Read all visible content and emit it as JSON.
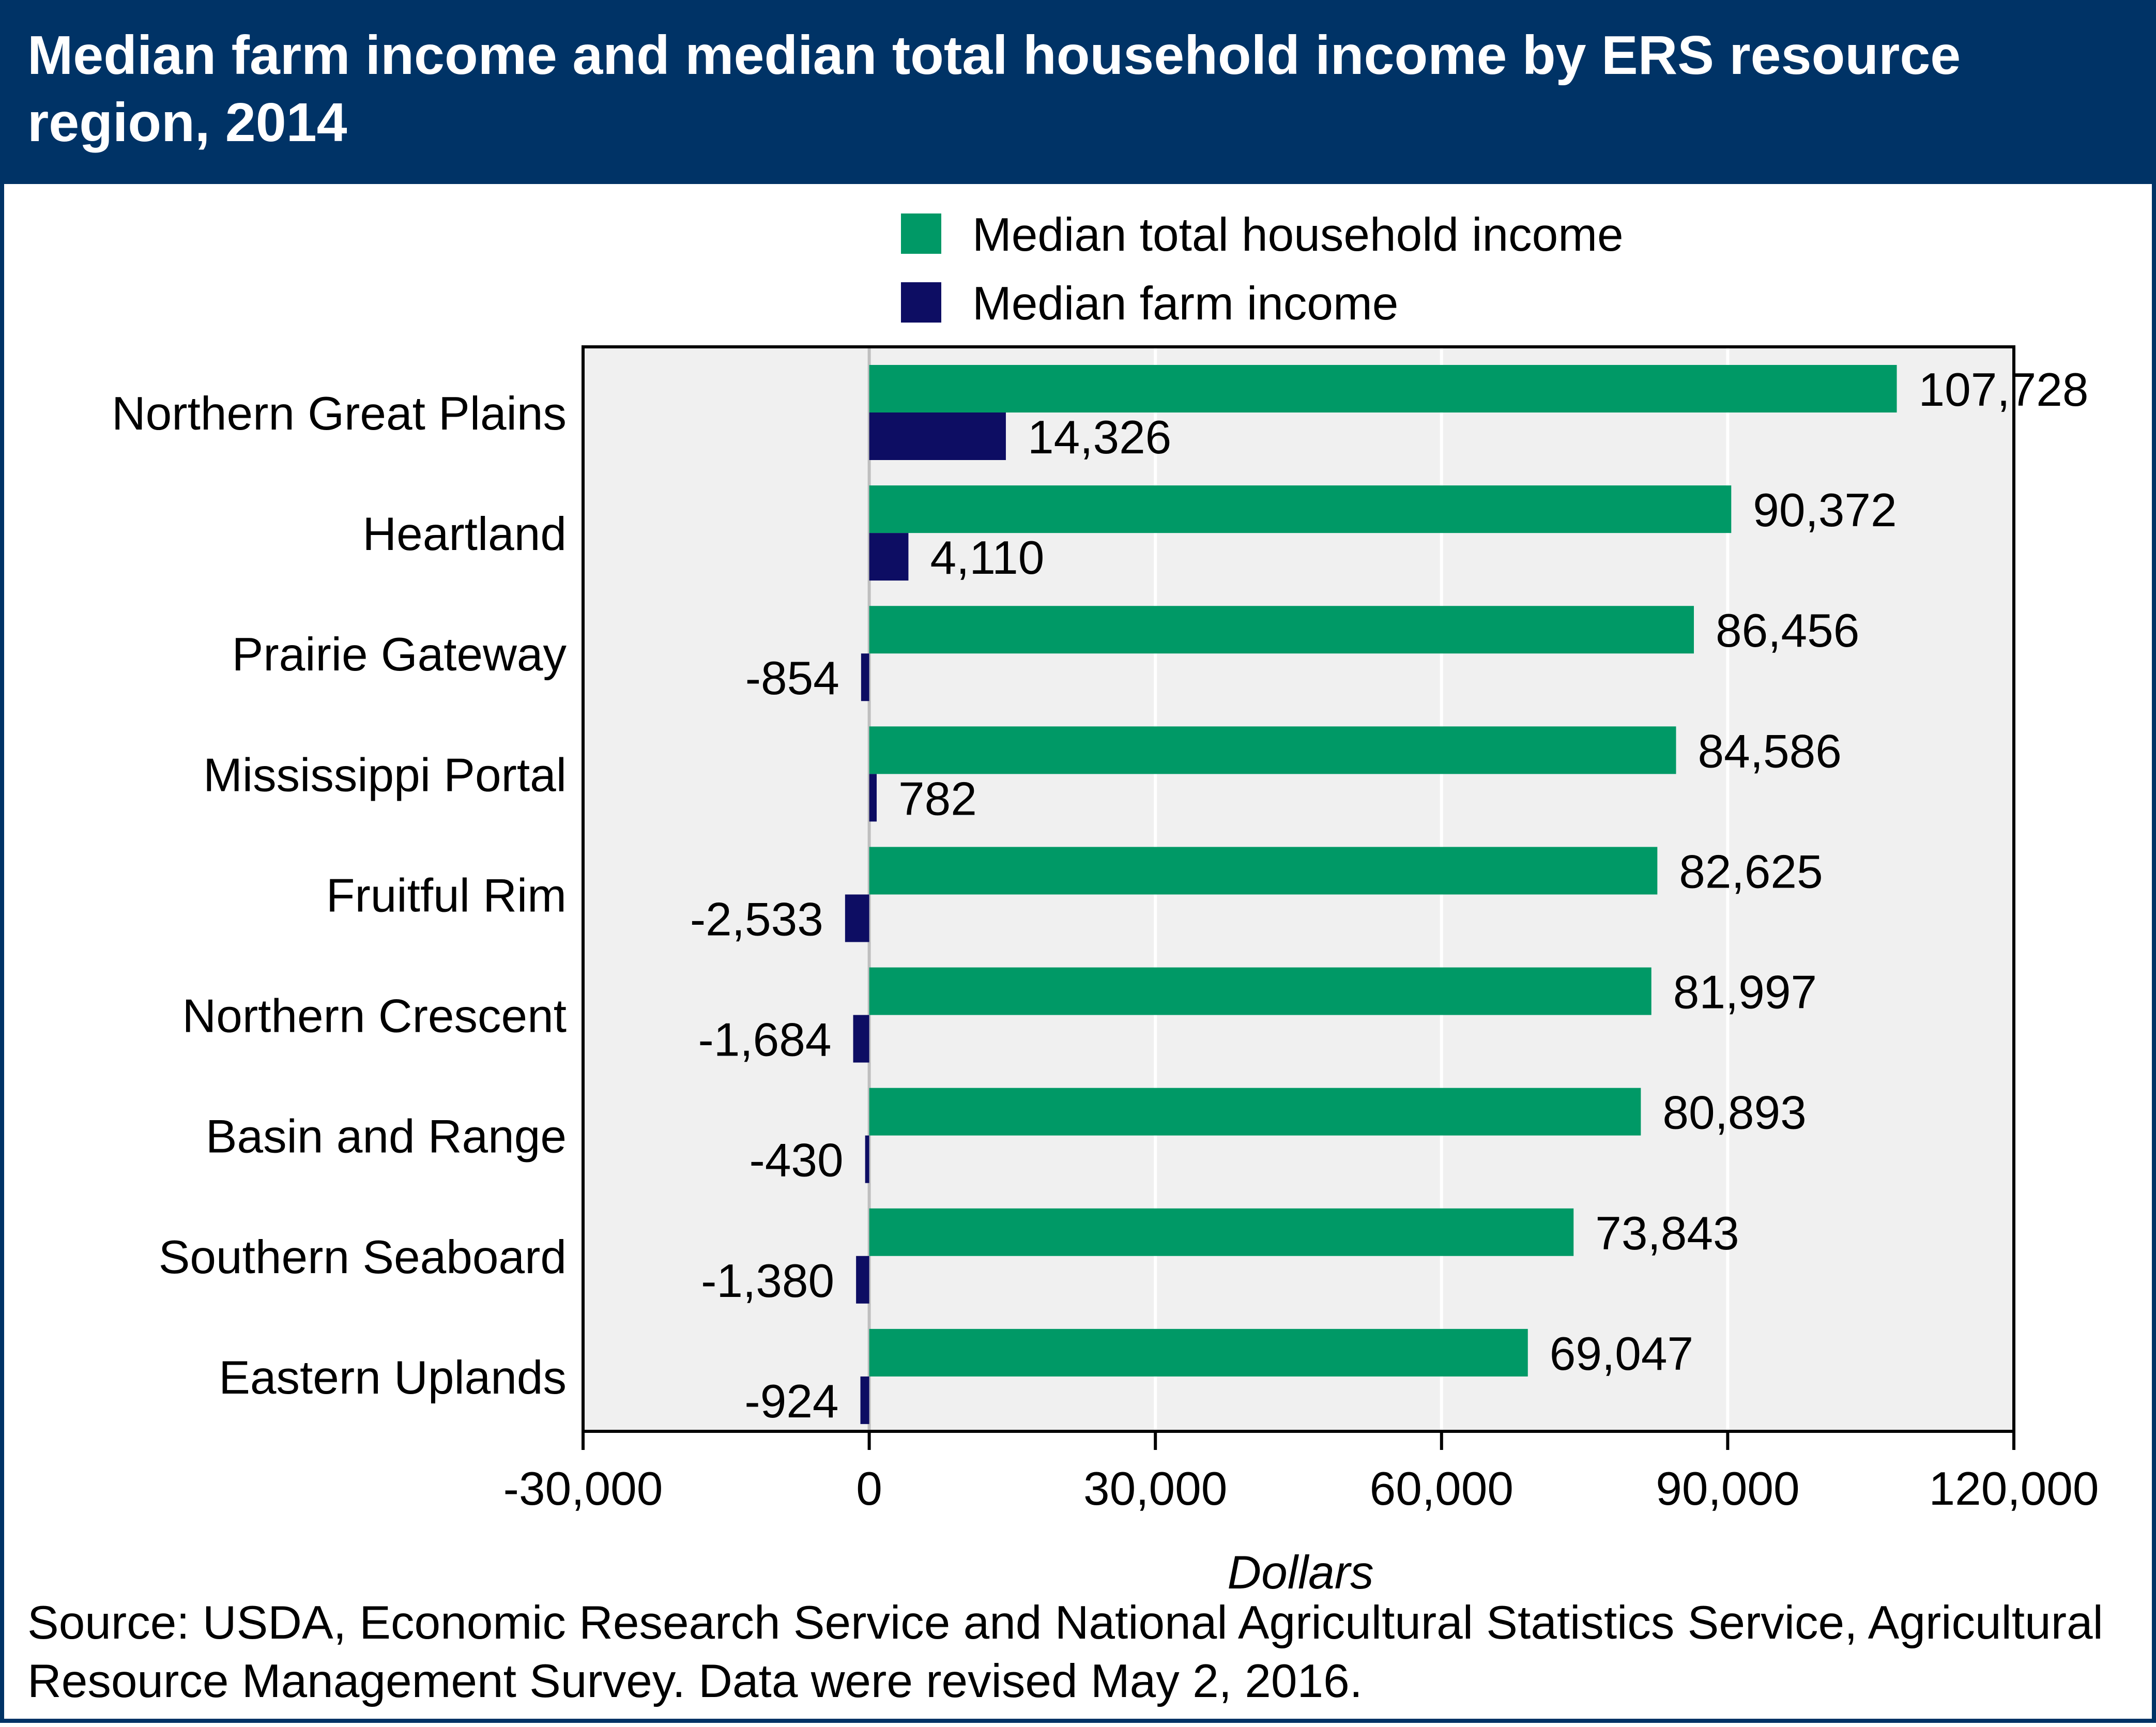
{
  "chart_data": {
    "type": "bar",
    "orientation": "horizontal",
    "title": "Median farm income and median total household income by ERS resource region, 2014",
    "xlabel": "Dollars",
    "ylabel": "",
    "xlim": [
      -30000,
      120000
    ],
    "xticks": [
      -30000,
      0,
      30000,
      60000,
      90000,
      120000
    ],
    "xtick_labels": [
      "-30,000",
      "0",
      "30,000",
      "60,000",
      "90,000",
      "120,000"
    ],
    "grid": "vertical",
    "legend_position": "top",
    "categories": [
      "Northern Great Plains",
      "Heartland",
      "Prairie Gateway",
      "Mississippi Portal",
      "Fruitful Rim",
      "Northern Crescent",
      "Basin and Range",
      "Southern Seaboard",
      "Eastern Uplands"
    ],
    "series": [
      {
        "name": "Median total household income",
        "color": "#009966",
        "values": [
          107728,
          90372,
          86456,
          84586,
          82625,
          81997,
          80893,
          73843,
          69047
        ],
        "labels": [
          "107,728",
          "90,372",
          "86,456",
          "84,586",
          "82,625",
          "81,997",
          "80,893",
          "73,843",
          "69,047"
        ]
      },
      {
        "name": "Median farm income",
        "color": "#0d0d63",
        "values": [
          14326,
          4110,
          -854,
          782,
          -2533,
          -1684,
          -430,
          -1380,
          -924
        ],
        "labels": [
          "14,326",
          "4,110",
          "-854",
          "782",
          "-2,533",
          "-1,684",
          "-430",
          "-1,380",
          "-924"
        ]
      }
    ],
    "plot_background": "#f0f0f0",
    "source": "Source: USDA, Economic Research Service and National Agricultural Statistics Service, Agricultural Resource Management Survey. Data were revised May 2, 2016."
  }
}
